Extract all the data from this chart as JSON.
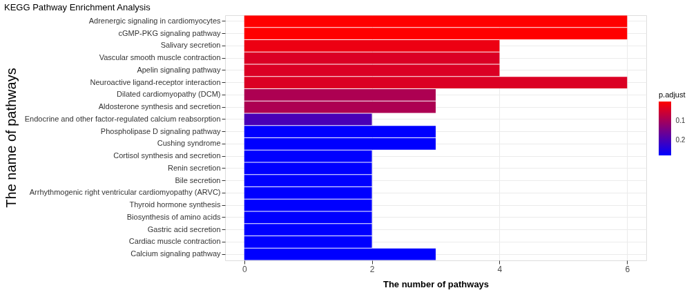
{
  "chart_data": {
    "type": "bar",
    "orientation": "horizontal",
    "title": "KEGG Pathway Enrichment Analysis",
    "xlabel": "The number of pathways",
    "ylabel": "The name of pathways",
    "clabel": "p.adjust",
    "categories": [
      "Adrenergic signaling in cardiomyocytes",
      "cGMP-PKG signaling pathway",
      "Salivary secretion",
      "Vascular smooth muscle contraction",
      "Apelin signaling pathway",
      "Neuroactive ligand-receptor interaction",
      "Dilated cardiomyopathy (DCM)",
      "Aldosterone synthesis and secretion",
      "Endocrine and other factor-regulated calcium reabsorption",
      "Phospholipase D signaling pathway",
      "Cushing syndrome",
      "Cortisol synthesis and secretion",
      "Renin secretion",
      "Bile secretion",
      "Arrhythmogenic right ventricular cardiomyopathy (ARVC)",
      "Thyroid hormone synthesis",
      "Biosynthesis of amino acids",
      "Gastric acid secretion",
      "Cardiac muscle contraction",
      "Calcium signaling pathway"
    ],
    "values": [
      6,
      6,
      4,
      4,
      4,
      6,
      3,
      3,
      2,
      3,
      3,
      2,
      2,
      2,
      2,
      2,
      2,
      2,
      2,
      3
    ],
    "cvalues": [
      0.0,
      0.0,
      0.02,
      0.04,
      0.04,
      0.04,
      0.09,
      0.09,
      0.2,
      0.28,
      0.28,
      0.28,
      0.28,
      0.28,
      0.28,
      0.28,
      0.28,
      0.28,
      0.28,
      0.28
    ],
    "clim": [
      0.0,
      0.28
    ],
    "cticks": [
      0.1,
      0.2
    ],
    "xlim": [
      -0.3,
      6.3
    ],
    "xticks": [
      0,
      2,
      4,
      6
    ],
    "grid": true
  }
}
